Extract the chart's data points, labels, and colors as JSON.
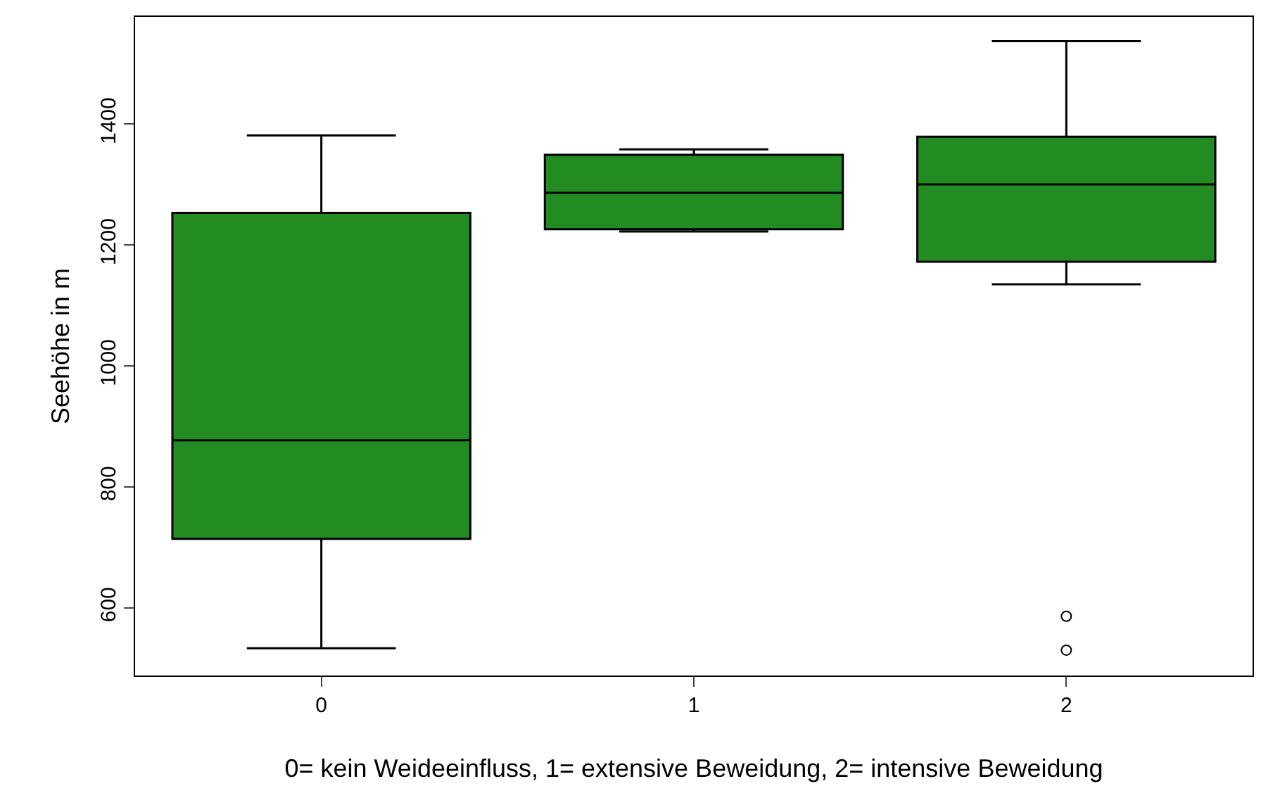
{
  "chart_data": {
    "type": "box",
    "xlabel": "0= kein Weideeinfluss, 1= extensive Beweidung, 2= intensive Beweidung",
    "ylabel": "Seehöhe in m",
    "categories": [
      "0",
      "1",
      "2"
    ],
    "color": "#228b22",
    "boxes": [
      {
        "low": 533,
        "q1": 714,
        "median": 877,
        "q3": 1253,
        "high": 1381
      },
      {
        "low": 1222,
        "q1": 1226,
        "median": 1286,
        "q3": 1349,
        "high": 1358
      },
      {
        "low": 1135,
        "q1": 1172,
        "median": 1300,
        "q3": 1379,
        "high": 1537,
        "outliers": [
          586,
          530
        ]
      }
    ],
    "ylim": [
      488,
      1577
    ],
    "yticks": [
      600,
      800,
      1000,
      1200,
      1400
    ]
  }
}
